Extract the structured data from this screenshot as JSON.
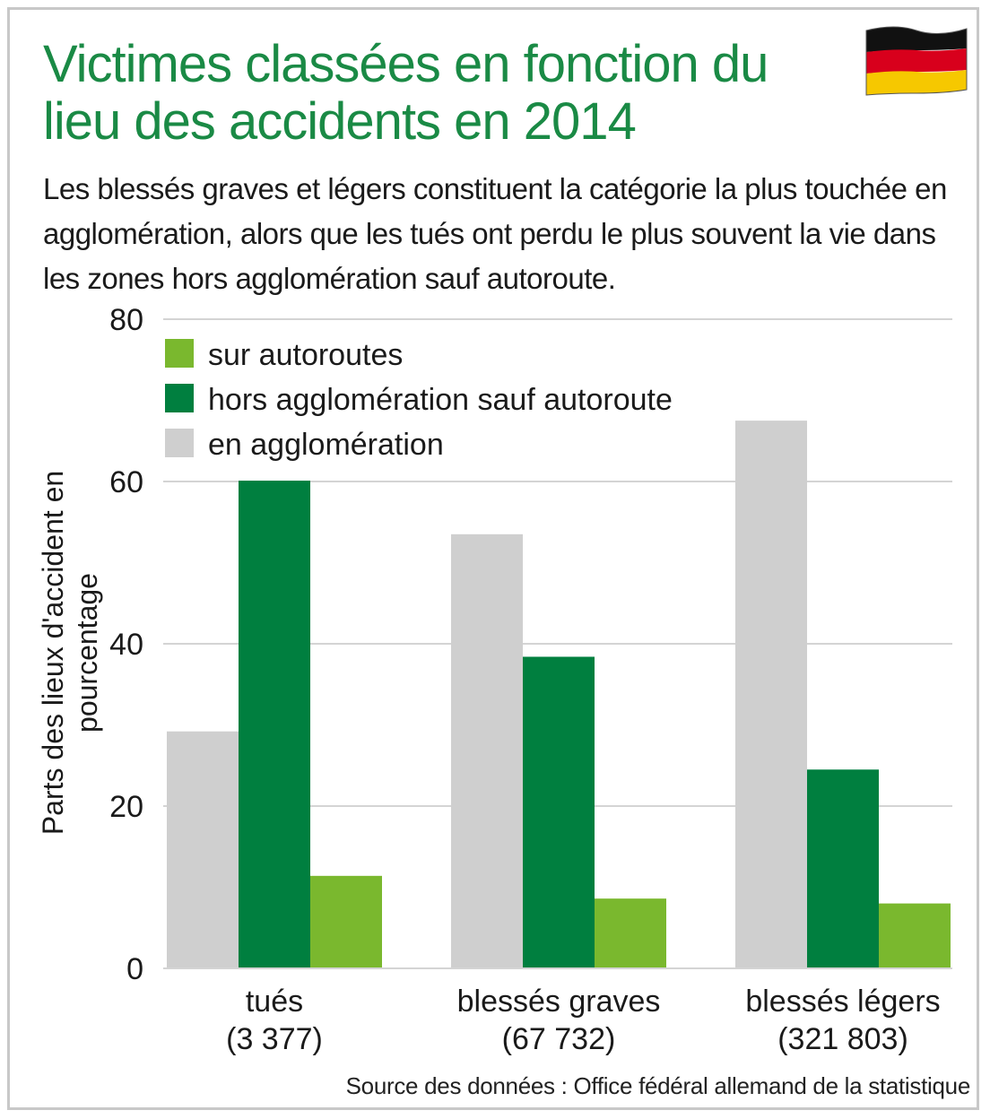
{
  "title_line1": "Victimes classées en fonction du",
  "title_line2": "lieu des accidents en 2014",
  "subtitle": "Les blessés graves et légers constituent la catégorie la plus touchée en agglomération, alors que les tués ont perdu le plus souvent la vie dans les zones hors agglomération sauf autoroute.",
  "source": "Source des données : Office fédéral allemand de la statistique",
  "flag_icon": "germany-flag-icon",
  "colors": {
    "title": "#1a8a45",
    "agglomeration": "#cfcfcf",
    "hors_agglomeration": "#007f3f",
    "autoroutes": "#7ab82e",
    "grid": "#d4d4d4"
  },
  "chart_data": {
    "type": "bar",
    "ylabel": "Parts des lieux d'accident en pourcentage",
    "ylim": [
      0,
      80
    ],
    "yticks": [
      0,
      20,
      40,
      60,
      80
    ],
    "grid": true,
    "legend_position": "top-left",
    "categories": [
      "tués\n(3 377)",
      "blessés graves\n(67 732)",
      "blessés légers\n(321 803)"
    ],
    "category_lines": [
      [
        "tués",
        "(3 377)"
      ],
      [
        "blessés graves",
        "(67 732)"
      ],
      [
        "blessés légers",
        "(321 803)"
      ]
    ],
    "series": [
      {
        "name": "en agglomération",
        "color": "#cfcfcf",
        "values": [
          29.2,
          53.5,
          67.5
        ]
      },
      {
        "name": "hors agglomération sauf autoroute",
        "color": "#007f3f",
        "values": [
          60.1,
          38.4,
          24.5
        ]
      },
      {
        "name": "sur autoroutes",
        "color": "#7ab82e",
        "values": [
          11.4,
          8.6,
          8.0
        ]
      }
    ],
    "legend_order": [
      "sur autoroutes",
      "hors agglomération sauf autoroute",
      "en agglomération"
    ]
  }
}
